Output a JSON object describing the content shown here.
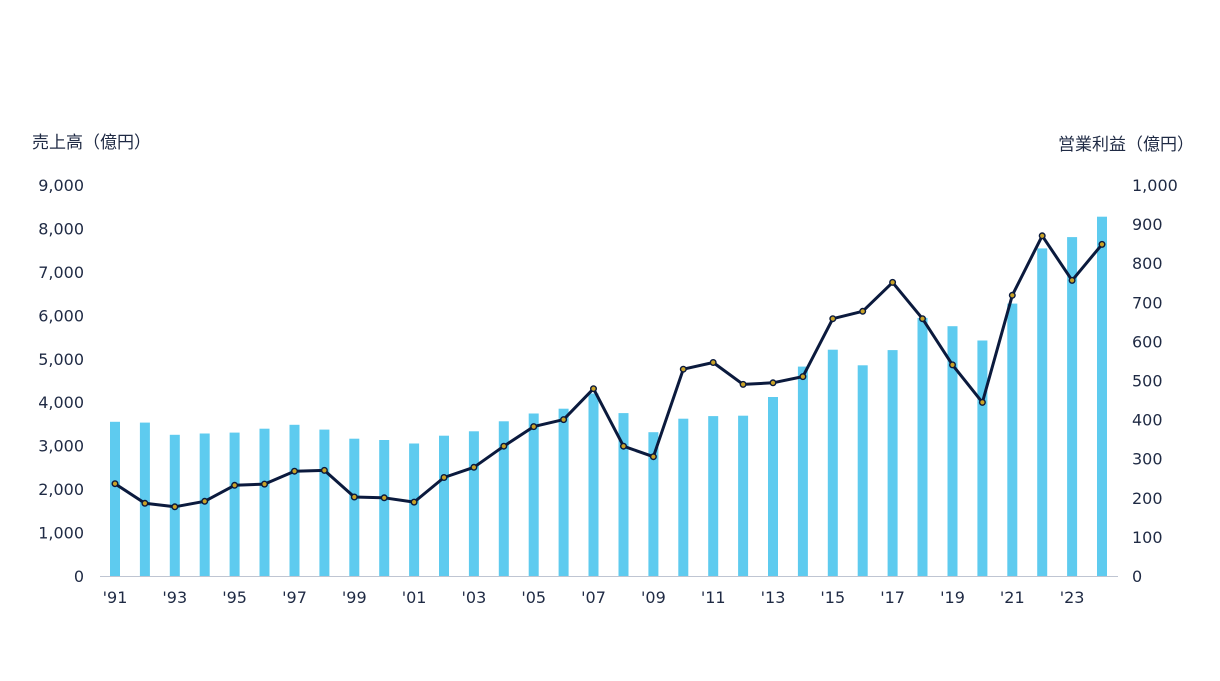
{
  "chart_data": {
    "type": "bar+line",
    "left_axis_title": "売上高（億円）",
    "right_axis_title": "営業利益（億円）",
    "categories": [
      "'91",
      "'92",
      "'93",
      "'94",
      "'95",
      "'96",
      "'97",
      "'98",
      "'99",
      "'00",
      "'01",
      "'02",
      "'03",
      "'04",
      "'05",
      "'06",
      "'07",
      "'08",
      "'09",
      "'10",
      "'11",
      "'12",
      "'13",
      "'14",
      "'15",
      "'16",
      "'17",
      "'18",
      "'19",
      "'20",
      "'21",
      "'22",
      "'23",
      "'24"
    ],
    "x_tick_labels": [
      "'91",
      "",
      "'93",
      "",
      "'95",
      "",
      "'97",
      "",
      "'99",
      "",
      "'01",
      "",
      "'03",
      "",
      "'05",
      "",
      "'07",
      "",
      "'09",
      "",
      "'11",
      "",
      "'13",
      "",
      "'15",
      "",
      "'17",
      "",
      "'19",
      "",
      "'21",
      "",
      "'23",
      ""
    ],
    "series": [
      {
        "axis": "left",
        "kind": "bar",
        "color": "#5ecbef",
        "values": [
          3550,
          3530,
          3250,
          3280,
          3300,
          3390,
          3480,
          3370,
          3160,
          3130,
          3050,
          3230,
          3330,
          3560,
          3740,
          3850,
          4200,
          3750,
          3310,
          3620,
          3680,
          3690,
          4120,
          4820,
          5210,
          4850,
          5200,
          5940,
          5750,
          5420,
          6270,
          7540,
          7800,
          8270
        ]
      },
      {
        "axis": "right",
        "kind": "line",
        "color": "#0b1a3d",
        "marker_color": "#c9a227",
        "values": [
          236,
          186,
          177,
          191,
          232,
          235,
          268,
          270,
          202,
          200,
          189,
          252,
          278,
          332,
          382,
          400,
          479,
          332,
          305,
          529,
          546,
          490,
          494,
          510,
          658,
          677,
          751,
          658,
          540,
          444,
          718,
          870,
          756,
          848
        ]
      }
    ],
    "left_ylim": [
      0,
      9000
    ],
    "left_ticks": [
      "0",
      "1,000",
      "2,000",
      "3,000",
      "4,000",
      "5,000",
      "6,000",
      "7,000",
      "8,000",
      "9,000"
    ],
    "right_ylim": [
      0,
      1000
    ],
    "right_ticks": [
      "0",
      "100",
      "200",
      "300",
      "400",
      "500",
      "600",
      "700",
      "800",
      "900",
      "1,000"
    ],
    "grid": false,
    "legend": "none"
  }
}
